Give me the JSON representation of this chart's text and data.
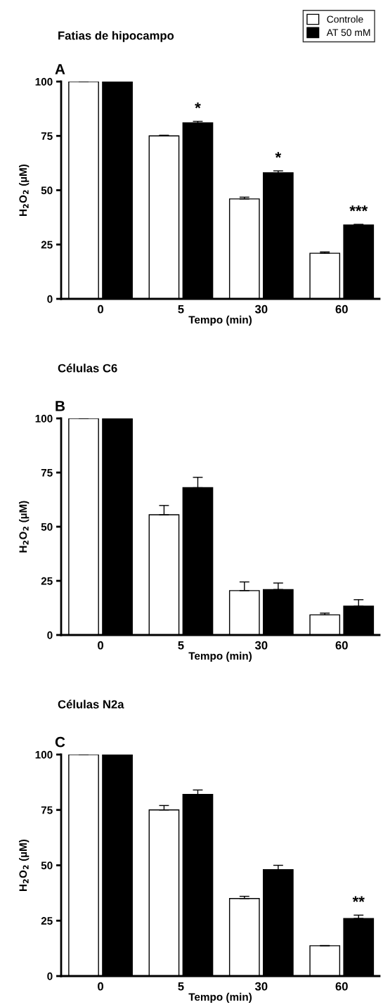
{
  "chart_data": [
    {
      "type": "bar",
      "title": "Fatias de hipocampo",
      "xlabel": "Tempo (min)",
      "ylabel": "H$_{2}$O$_{2}$ (µM)",
      "categories": [
        "0",
        "5",
        "30",
        "60"
      ],
      "ylim": [
        0,
        100
      ],
      "yticks": [
        0,
        25,
        50,
        75,
        100
      ],
      "grid": false,
      "legend": "top right",
      "series": [
        {
          "name": "Controle",
          "color": "#ffffff",
          "values": [
            100,
            75,
            46,
            21
          ],
          "errors": [
            null,
            0.3,
            0.8,
            0.6
          ]
        },
        {
          "name": "AT 50 mM",
          "color": "#000000",
          "values": [
            100,
            81,
            58,
            34
          ],
          "errors": [
            null,
            0.7,
            0.9,
            0.3
          ]
        }
      ],
      "annotations": [
        "A",
        {
          "text": "*",
          "x": "5",
          "y": 81
        },
        {
          "text": "*",
          "x": "30",
          "y": 58
        },
        {
          "text": "***",
          "x": "60",
          "y": 34
        }
      ]
    },
    {
      "type": "bar",
      "title": "Células C6",
      "xlabel": "Tempo (min)",
      "ylabel": "H$_{2}$O$_{2}$ (µM)",
      "categories": [
        "0",
        "5",
        "30",
        "60"
      ],
      "ylim": [
        0,
        100
      ],
      "yticks": [
        0,
        25,
        50,
        75,
        100
      ],
      "grid": false,
      "series": [
        {
          "color": "#ffffff",
          "values": [
            100,
            55.5,
            20.5,
            9.3
          ],
          "errors": [
            null,
            4.3,
            4,
            0.8
          ]
        },
        {
          "color": "#000000",
          "values": [
            100,
            68,
            21,
            13.3
          ],
          "errors": [
            null,
            4.8,
            3,
            3
          ]
        }
      ],
      "annotations": [
        "B"
      ]
    },
    {
      "type": "bar",
      "title": "Células N2a",
      "xlabel": "Tempo (min)",
      "ylabel": "H$_{2}$O$_{2}$ (µM)",
      "categories": [
        "0",
        "5",
        "30",
        "60"
      ],
      "ylim": [
        0,
        100
      ],
      "yticks": [
        0,
        25,
        50,
        75,
        100
      ],
      "grid": false,
      "series": [
        {
          "color": "#ffffff",
          "values": [
            100,
            75,
            35,
            13.7
          ],
          "errors": [
            null,
            2,
            1,
            0.1
          ]
        },
        {
          "color": "#000000",
          "values": [
            100,
            82,
            48,
            26
          ],
          "errors": [
            null,
            2,
            2,
            1.5
          ]
        }
      ],
      "annotations": [
        "C",
        {
          "text": "**",
          "x": "60",
          "y": 26
        }
      ]
    }
  ]
}
